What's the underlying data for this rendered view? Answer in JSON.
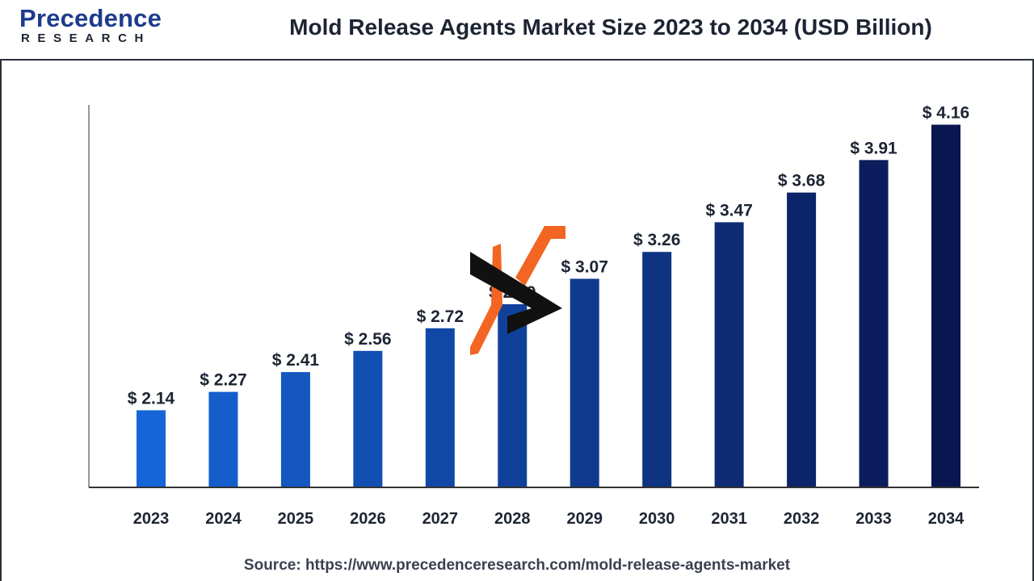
{
  "header": {
    "logo_main": "Precedence",
    "logo_sub": "RESEARCH",
    "title": "Mold Release Agents Market Size 2023 to 2034 (USD Billion)"
  },
  "source_text": "Source: https://www.precedenceresearch.com/mold-release-agents-market",
  "colors": {
    "bar_start": "#1565d8",
    "bar_end": "#0a1650",
    "axis": "#333333",
    "watermark_orange": "#f26522",
    "watermark_black": "#111111"
  },
  "chart_data": {
    "type": "bar",
    "title": "Mold Release Agents Market Size 2023 to 2034 (USD Billion)",
    "categories": [
      "2023",
      "2024",
      "2025",
      "2026",
      "2027",
      "2028",
      "2029",
      "2030",
      "2031",
      "2032",
      "2033",
      "2034"
    ],
    "values": [
      2.14,
      2.27,
      2.41,
      2.56,
      2.72,
      2.89,
      3.07,
      3.26,
      3.47,
      3.68,
      3.91,
      4.16
    ],
    "value_labels": [
      "$ 2.14",
      "$ 2.27",
      "$ 2.41",
      "$ 2.56",
      "$ 2.72",
      "$ 2.89",
      "$ 3.07",
      "$ 3.26",
      "$ 3.47",
      "$ 3.68",
      "$ 3.91",
      "$ 4.16"
    ],
    "xlabel": "",
    "ylabel": "",
    "ylim": [
      1.6,
      4.3
    ],
    "grid": false,
    "legend": "none"
  }
}
